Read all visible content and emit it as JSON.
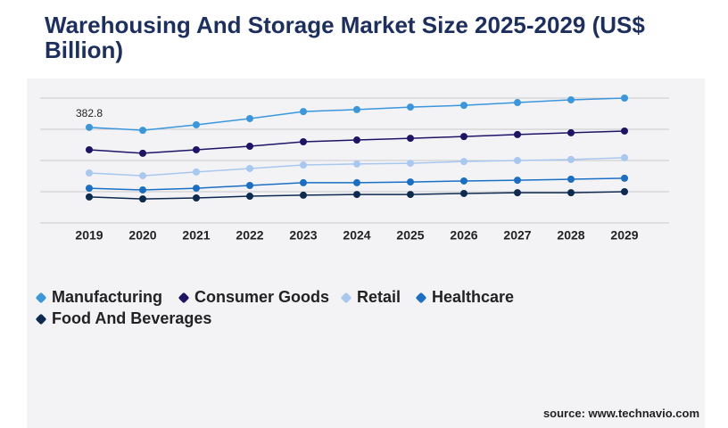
{
  "chart_data": {
    "type": "line",
    "title": "Warehousing And Storage Market Size 2025-2029 (US$ Billion)",
    "source": "source: www.technavio.com",
    "categories": [
      "2019",
      "2020",
      "2021",
      "2022",
      "2023",
      "2024",
      "2025",
      "2026",
      "2027",
      "2028",
      "2029"
    ],
    "series": [
      {
        "name": "Manufacturing",
        "color": "#3a97dc",
        "values": [
          382.8,
          371,
          393,
          418,
          446,
          454,
          464,
          471,
          482,
          493,
          500
        ],
        "value_labels": [
          "382.8",
          null,
          null,
          null,
          null,
          null,
          null,
          null,
          null,
          null,
          null
        ]
      },
      {
        "name": "Consumer Goods",
        "color": "#1d1466",
        "values": [
          293,
          279,
          293,
          307,
          325,
          332,
          339,
          346,
          354,
          361,
          368
        ]
      },
      {
        "name": "Retail",
        "color": "#a8c8f0",
        "values": [
          200,
          189,
          204,
          218,
          232,
          236,
          239,
          246,
          250,
          254,
          261
        ]
      },
      {
        "name": "Healthcare",
        "color": "#1a6fc4",
        "values": [
          139,
          132,
          139,
          150,
          161,
          161,
          164,
          168,
          171,
          175,
          179
        ]
      },
      {
        "name": "Food And Beverages",
        "color": "#0d2a4f",
        "values": [
          104,
          96,
          100,
          107,
          111,
          114,
          114,
          118,
          121,
          121,
          125
        ]
      }
    ],
    "ylim": [
      0,
      500
    ],
    "yticks": [
      0,
      125,
      250,
      375,
      500
    ],
    "grid": true
  }
}
